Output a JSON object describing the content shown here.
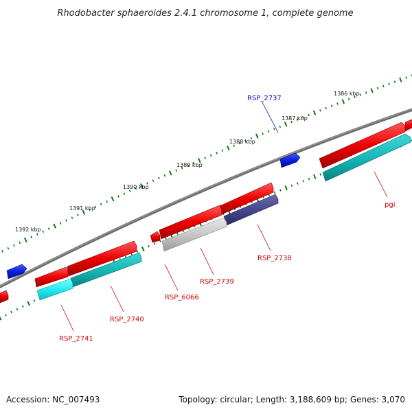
{
  "title": "Rhodobacter sphaeroides 2.4.1 chromosome 1, complete genome",
  "footer": {
    "accession": "Accession: NC_007493",
    "summary": "Topology: circular; Length: 3,188,609 bp; Genes: 3,070"
  },
  "colors": {
    "backbone": "#7a7a7a",
    "tick": "#0a7a0a",
    "label_red": "#cc0000",
    "label_blue": "#0000cc"
  },
  "scale_labels": [
    {
      "id": "1392",
      "text": "1392 kbp"
    },
    {
      "id": "1391",
      "text": "1391 kbp"
    },
    {
      "id": "1390",
      "text": "1390 kbp"
    },
    {
      "id": "1389",
      "text": "1389 kbp"
    },
    {
      "id": "1388",
      "text": "1388 kbp"
    },
    {
      "id": "1387",
      "text": "1387 kbp"
    },
    {
      "id": "1386",
      "text": "1386 kbp"
    }
  ],
  "gene_labels": [
    {
      "id": "rsp2737",
      "text": "RSP_2737",
      "color": "blue"
    },
    {
      "id": "pgi",
      "text": "pgi",
      "color": "red"
    },
    {
      "id": "rsp2738",
      "text": "RSP_2738",
      "color": "red"
    },
    {
      "id": "rsp2739",
      "text": "RSP_2739",
      "color": "red"
    },
    {
      "id": "rsp6066",
      "text": "RSP_6066",
      "color": "red"
    },
    {
      "id": "rsp2740",
      "text": "RSP_2740",
      "color": "red"
    },
    {
      "id": "rsp2741",
      "text": "RSP_2741",
      "color": "red"
    }
  ]
}
